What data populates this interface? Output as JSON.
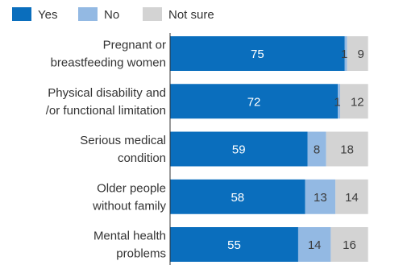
{
  "chart_data": {
    "type": "bar",
    "orientation": "horizontal",
    "stacked": true,
    "title": "",
    "xlabel": "",
    "ylabel": "",
    "xlim": [
      0,
      100
    ],
    "grid": false,
    "legend_placement": "top-left",
    "categories": [
      [
        "Pregnant or",
        "breastfeeding women"
      ],
      [
        "Physical disability and",
        "/or functional limitation"
      ],
      [
        "Serious medical",
        "condition"
      ],
      [
        "Older people",
        "without family"
      ],
      [
        "Mental health",
        "problems"
      ]
    ],
    "series": [
      {
        "name": "Yes",
        "color": "#0A6EBD",
        "label_color": "#ffffff",
        "values": [
          75,
          72,
          59,
          58,
          55
        ]
      },
      {
        "name": "No",
        "color": "#93B9E3",
        "label_color": "#3c3c3c",
        "values": [
          1,
          1,
          8,
          13,
          14
        ]
      },
      {
        "name": "Not sure",
        "color": "#D3D3D3",
        "label_color": "#3c3c3c",
        "values": [
          9,
          12,
          18,
          14,
          16
        ]
      }
    ]
  }
}
